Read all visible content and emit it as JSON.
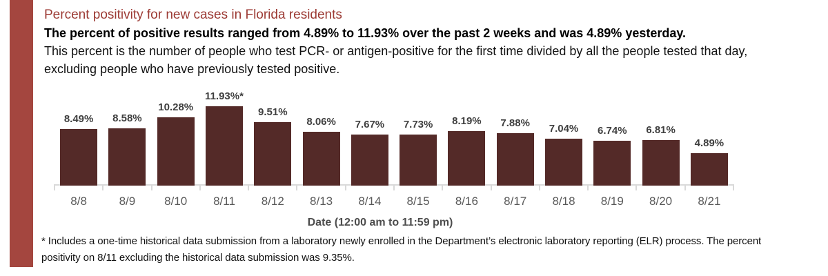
{
  "colors": {
    "accent_stripe": "#a4463f",
    "title": "#9c3a34",
    "bar": "#542a28",
    "value_label": "#3f3f3f",
    "date_label": "#595959",
    "axis": "#d9d9d9",
    "axis_title": "#4d4d4d",
    "body_text": "#111111"
  },
  "header": {
    "title": "Percent positivity for new cases in Florida residents",
    "subtitle": "The percent of positive results ranged from 4.89% to 11.93% over the past 2 weeks and was 4.89% yesterday.",
    "description_lines": [
      "This percent is the number of people who test PCR- or antigen-positive for the first time divided by all the people tested that day,",
      "excluding people who have previously tested positive."
    ]
  },
  "chart_data": {
    "type": "bar",
    "title": "Percent positivity for new cases in Florida residents",
    "categories": [
      "8/8",
      "8/9",
      "8/10",
      "8/11",
      "8/12",
      "8/13",
      "8/14",
      "8/15",
      "8/16",
      "8/17",
      "8/18",
      "8/19",
      "8/20",
      "8/21"
    ],
    "values": [
      8.49,
      8.58,
      10.28,
      11.93,
      9.51,
      8.06,
      7.67,
      7.73,
      8.19,
      7.88,
      7.04,
      6.74,
      6.81,
      4.89
    ],
    "point_labels": [
      "8.49%",
      "8.58%",
      "10.28%",
      "11.93%*",
      "9.51%",
      "8.06%",
      "7.67%",
      "7.73%",
      "8.19%",
      "7.88%",
      "7.04%",
      "6.74%",
      "6.81%",
      "4.89%"
    ],
    "xlabel": "Date (12:00 am to 11:59 pm)",
    "ylabel": "",
    "ylim": [
      0,
      13
    ],
    "grid": false,
    "legend": false,
    "bar_color": "#542a28"
  },
  "footnote": {
    "lines": [
      "* Includes a one-time historical data submission from a laboratory newly enrolled in the Department’s electronic laboratory reporting (ELR) process. The percent",
      "positivity on 8/11 excluding the historical data submission was 9.35%."
    ]
  }
}
